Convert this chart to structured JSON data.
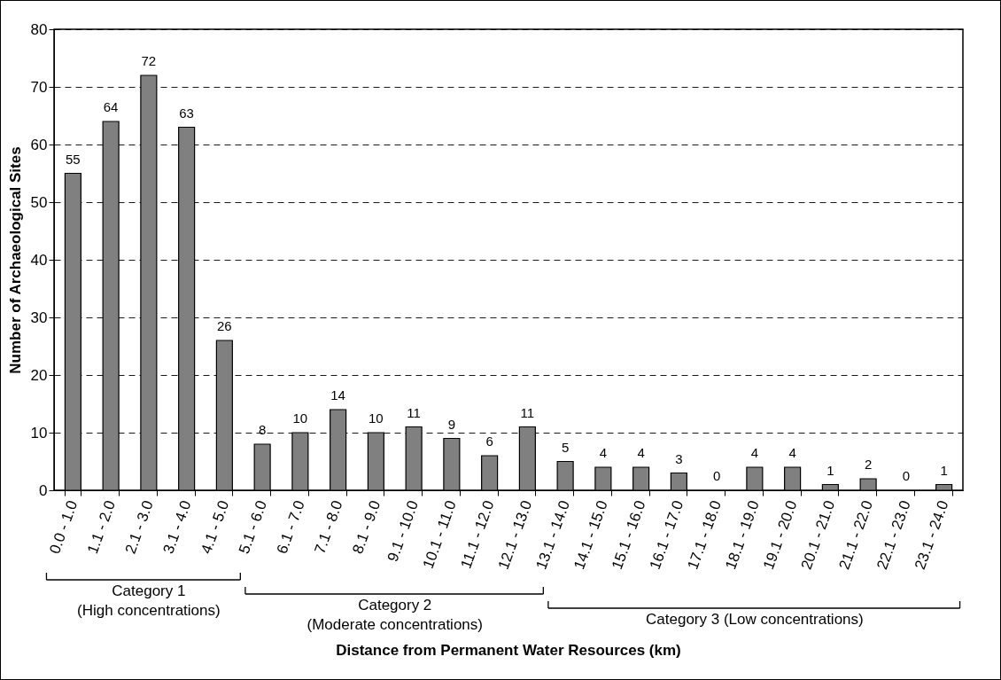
{
  "chart_data": {
    "type": "bar",
    "xlabel": "Distance from Permanent Water Resources (km)",
    "ylabel": "Number of Archaeological Sites",
    "categories": [
      "0.0 - 1.0",
      "1.1 - 2.0",
      "2.1 - 3.0",
      "3.1 - 4.0",
      "4.1 - 5.0",
      "5.1 - 6.0",
      "6.1 - 7.0",
      "7.1 - 8.0",
      "8.1 - 9.0",
      "9.1 - 10.0",
      "10.1 - 11.0",
      "11.1 - 12.0",
      "12.1 - 13.0",
      "13.1 - 14.0",
      "14.1 - 15.0",
      "15.1 - 16.0",
      "16.1 - 17.0",
      "17.1 - 18.0",
      "18.1 - 19.0",
      "19.1 - 20.0",
      "20.1 - 21.0",
      "21.1 - 22.0",
      "22.1 - 23.0",
      "23.1 - 24.0"
    ],
    "values": [
      55,
      64,
      72,
      63,
      26,
      8,
      10,
      14,
      10,
      11,
      9,
      6,
      11,
      5,
      4,
      4,
      3,
      0,
      4,
      4,
      1,
      2,
      0,
      1
    ],
    "color": "#808080",
    "ylim": [
      0,
      80
    ],
    "yticks": [
      0,
      10,
      20,
      30,
      40,
      50,
      60,
      70,
      80
    ],
    "grid": "y",
    "data_labels": true,
    "annotations": [
      "Category 1\n(High concentrations)",
      "Category 2\n(Moderate concentrations)",
      "Category 3 (Low concentrations)"
    ]
  }
}
